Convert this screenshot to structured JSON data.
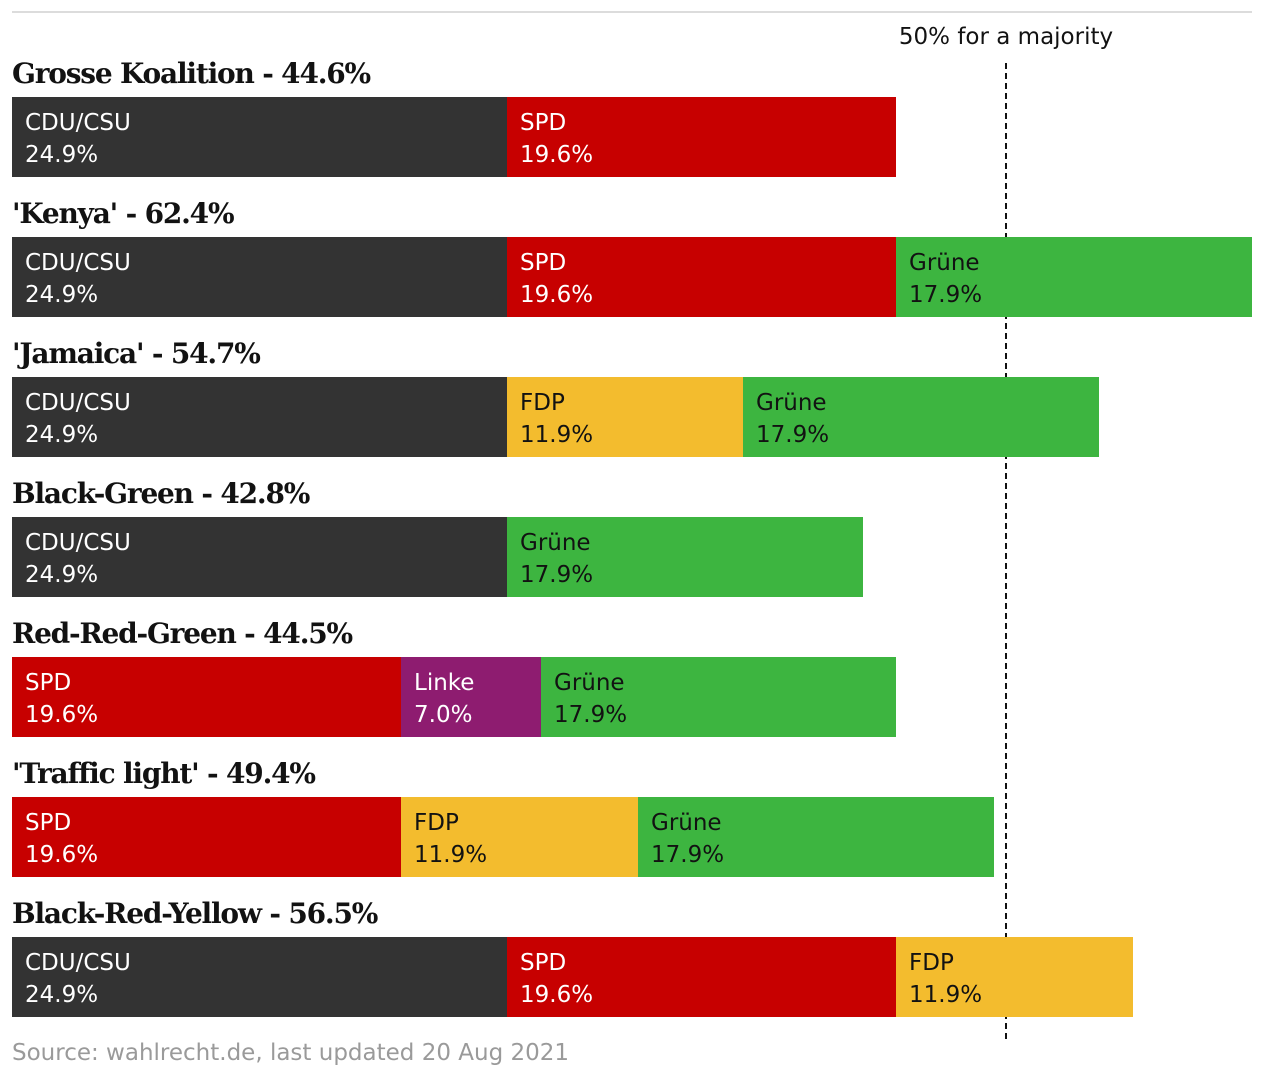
{
  "chart_data": {
    "type": "bar",
    "subtype": "stacked-horizontal",
    "xlim": [
      0,
      62.4
    ],
    "reference_line": {
      "value": 50,
      "label": "50% for a majority"
    },
    "colors": {
      "CDU/CSU": "#333333",
      "SPD": "#c70000",
      "Grüne": "#3db540",
      "FDP": "#f3bc2e",
      "Linke": "#8e1c70"
    },
    "text_colors": {
      "CDU/CSU": "#ffffff",
      "SPD": "#ffffff",
      "Grüne": "#121212",
      "FDP": "#121212",
      "Linke": "#ffffff"
    },
    "coalitions": [
      {
        "title": "Grosse Koalition - 44.6%",
        "total": 44.6,
        "segments": [
          {
            "party": "CDU/CSU",
            "label": "24.9%",
            "value": 24.9
          },
          {
            "party": "SPD",
            "label": "19.6%",
            "value": 19.6
          }
        ]
      },
      {
        "title": "'Kenya' - 62.4%",
        "total": 62.4,
        "segments": [
          {
            "party": "CDU/CSU",
            "label": "24.9%",
            "value": 24.9
          },
          {
            "party": "SPD",
            "label": "19.6%",
            "value": 19.6
          },
          {
            "party": "Grüne",
            "label": "17.9%",
            "value": 17.9
          }
        ]
      },
      {
        "title": "'Jamaica' - 54.7%",
        "total": 54.7,
        "segments": [
          {
            "party": "CDU/CSU",
            "label": "24.9%",
            "value": 24.9
          },
          {
            "party": "FDP",
            "label": "11.9%",
            "value": 11.9
          },
          {
            "party": "Grüne",
            "label": "17.9%",
            "value": 17.9
          }
        ]
      },
      {
        "title": "Black-Green - 42.8%",
        "total": 42.8,
        "segments": [
          {
            "party": "CDU/CSU",
            "label": "24.9%",
            "value": 24.9
          },
          {
            "party": "Grüne",
            "label": "17.9%",
            "value": 17.9
          }
        ]
      },
      {
        "title": "Red-Red-Green - 44.5%",
        "total": 44.5,
        "segments": [
          {
            "party": "SPD",
            "label": "19.6%",
            "value": 19.6
          },
          {
            "party": "Linke",
            "label": "7.0%",
            "value": 7.0
          },
          {
            "party": "Grüne",
            "label": "17.9%",
            "value": 17.9
          }
        ]
      },
      {
        "title": "'Traffic light' - 49.4%",
        "total": 49.4,
        "segments": [
          {
            "party": "SPD",
            "label": "19.6%",
            "value": 19.6
          },
          {
            "party": "FDP",
            "label": "11.9%",
            "value": 11.9
          },
          {
            "party": "Grüne",
            "label": "17.9%",
            "value": 17.9
          }
        ]
      },
      {
        "title": "Black-Red-Yellow - 56.5%",
        "total": 56.5,
        "segments": [
          {
            "party": "CDU/CSU",
            "label": "24.9%",
            "value": 24.9
          },
          {
            "party": "SPD",
            "label": "19.6%",
            "value": 19.6
          },
          {
            "party": "FDP",
            "label": "11.9%",
            "value": 11.9
          }
        ]
      }
    ],
    "source": "Source: wahlrecht.de, last updated 20 Aug 2021"
  }
}
